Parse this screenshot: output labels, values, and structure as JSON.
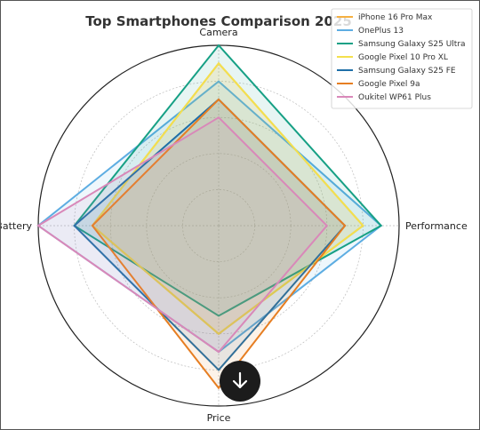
{
  "chart_data": {
    "type": "radar",
    "title": "Top Smartphones Comparison 2025",
    "axes": [
      "Camera",
      "Performance",
      "Price",
      "Battery"
    ],
    "range": [
      0,
      10
    ],
    "grid": true,
    "legend_position": "top-right",
    "series": [
      {
        "name": "iPhone 16 Pro Max",
        "color": "#f5b041",
        "values": [
          9.0,
          8.0,
          6.0,
          7.0
        ]
      },
      {
        "name": "OnePlus 13",
        "color": "#5dade2",
        "values": [
          8.0,
          9.0,
          7.0,
          10.0
        ]
      },
      {
        "name": "Samsung Galaxy S25 Ultra",
        "color": "#16a085",
        "values": [
          10.0,
          9.0,
          5.0,
          8.0
        ]
      },
      {
        "name": "Google Pixel 10 Pro XL",
        "color": "#f4e04d",
        "values": [
          9.0,
          8.0,
          6.0,
          7.0
        ]
      },
      {
        "name": "Samsung Galaxy S25 FE",
        "color": "#1f6fa8",
        "values": [
          7.0,
          7.0,
          8.0,
          8.0
        ]
      },
      {
        "name": "Google Pixel 9a",
        "color": "#e67e22",
        "values": [
          7.0,
          7.0,
          9.0,
          7.0
        ]
      },
      {
        "name": "Oukitel WP61 Plus",
        "color": "#d988b9",
        "values": [
          6.0,
          6.0,
          7.0,
          10.0
        ]
      }
    ]
  },
  "controls": {
    "scroll_down_icon": "arrow-down-icon"
  }
}
